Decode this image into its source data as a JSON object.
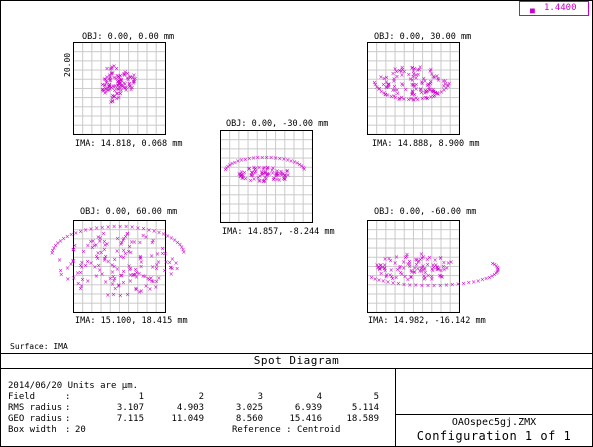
{
  "wavelength": {
    "value": "1.4400",
    "color": "#cc00cc"
  },
  "surface_label": "Surface: IMA",
  "title": "Spot Diagram",
  "scale_label": "20.00",
  "panels": [
    {
      "obj": "OBJ: 0.00, 0.00 mm",
      "ima": "IMA: 14.818, 0.068 mm"
    },
    {
      "obj": "OBJ: 0.00, 30.00 mm",
      "ima": "IMA: 14.888, 8.900 mm"
    },
    {
      "obj": "OBJ: 0.00, -30.00 mm",
      "ima": "IMA: 14.857, -8.244 mm"
    },
    {
      "obj": "OBJ: 0.00, 60.00 mm",
      "ima": "IMA: 15.100, 18.415 mm"
    },
    {
      "obj": "OBJ: 0.00, -60.00 mm",
      "ima": "IMA: 14.982, -16.142 mm"
    }
  ],
  "info": {
    "date_units": "2014/06/20  Units are µm.",
    "field_label": "Field",
    "rms_label": "RMS radius",
    "geo_label": "GEO radius",
    "box_label": "Box width",
    "colon": ":",
    "fields": [
      "1",
      "2",
      "3",
      "4",
      "5"
    ],
    "rms": [
      "3.107",
      "4.903",
      "3.025",
      "6.939",
      "5.114"
    ],
    "geo": [
      "7.115",
      "11.049",
      "8.560",
      "15.416",
      "18.589"
    ],
    "box_width": "20",
    "reference": "Reference  : Centroid"
  },
  "file_name": "OAOspec5gj.ZMX",
  "configuration": "Configuration 1 of 1"
}
